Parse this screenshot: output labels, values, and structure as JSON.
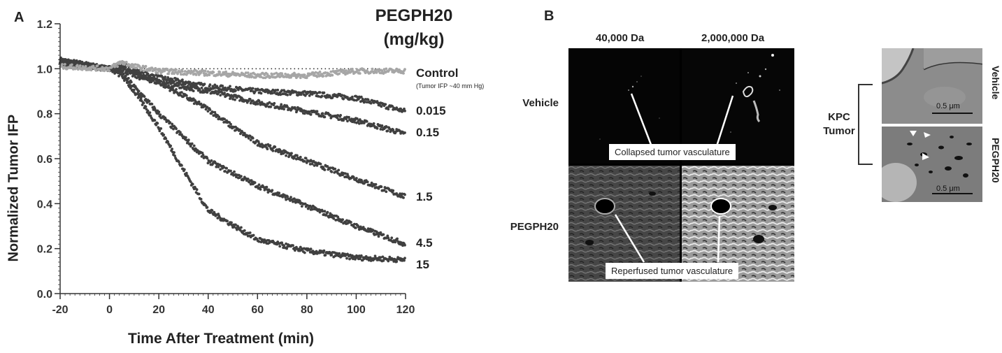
{
  "panels": {
    "a_letter": "A",
    "b_letter": "B"
  },
  "chart_data": {
    "type": "scatter",
    "title": "PEGPH20\n(mg/kg)",
    "title_line1": "PEGPH20",
    "title_line2": "(mg/kg)",
    "xlabel": "Time After Treatment (min)",
    "ylabel": "Normalized Tumor IFP",
    "xlim": [
      -20,
      120
    ],
    "ylim": [
      0.0,
      1.2
    ],
    "xticks": [
      -20,
      0,
      20,
      40,
      60,
      80,
      100,
      120
    ],
    "yticks": [
      0.0,
      0.2,
      0.4,
      0.6,
      0.8,
      1.0,
      1.2
    ],
    "xtick_labels": [
      "-20",
      "0",
      "20",
      "40",
      "60",
      "80",
      "100",
      "120"
    ],
    "ytick_labels": [
      "0.0",
      "0.2",
      "0.4",
      "0.6",
      "0.8",
      "1.0",
      "1.2"
    ],
    "reference_line": 1.0,
    "control_note": "(Tumor IFP ~40 mm Hg)",
    "colors": {
      "control": "#a6a6a6",
      "treated": "#404040"
    },
    "series": [
      {
        "name": "Control",
        "x": [
          -20,
          0,
          5,
          10,
          20,
          40,
          60,
          80,
          100,
          120
        ],
        "y": [
          1.01,
          1.0,
          1.03,
          1.01,
          0.99,
          0.98,
          0.97,
          0.97,
          0.99,
          0.99
        ]
      },
      {
        "name": "0.015",
        "x": [
          -20,
          0,
          5,
          10,
          20,
          40,
          60,
          80,
          100,
          120
        ],
        "y": [
          1.04,
          1.0,
          1.02,
          0.99,
          0.96,
          0.92,
          0.9,
          0.89,
          0.87,
          0.81
        ]
      },
      {
        "name": "0.15",
        "x": [
          -20,
          0,
          5,
          10,
          20,
          40,
          60,
          80,
          100,
          120
        ],
        "y": [
          1.03,
          1.0,
          1.01,
          0.98,
          0.94,
          0.9,
          0.85,
          0.81,
          0.77,
          0.71
        ]
      },
      {
        "name": "1.5",
        "x": [
          -20,
          0,
          5,
          10,
          20,
          40,
          50,
          60,
          80,
          100,
          120
        ],
        "y": [
          1.02,
          1.0,
          1.0,
          0.97,
          0.94,
          0.82,
          0.74,
          0.67,
          0.59,
          0.51,
          0.43
        ]
      },
      {
        "name": "4.5",
        "x": [
          -20,
          0,
          5,
          10,
          20,
          40,
          60,
          80,
          100,
          120
        ],
        "y": [
          1.03,
          1.0,
          0.98,
          0.92,
          0.8,
          0.59,
          0.48,
          0.39,
          0.3,
          0.22
        ]
      },
      {
        "name": "15",
        "x": [
          -20,
          0,
          5,
          10,
          20,
          30,
          40,
          60,
          80,
          100,
          120
        ],
        "y": [
          1.03,
          1.0,
          0.97,
          0.9,
          0.74,
          0.55,
          0.37,
          0.24,
          0.19,
          0.16,
          0.15
        ]
      }
    ]
  },
  "panel_b": {
    "col_labels": [
      "40,000 Da",
      "2,000,000 Da"
    ],
    "row_labels": [
      "Vehicle",
      "PEGPH20"
    ],
    "callout_top": "Collapsed tumor vasculature",
    "callout_bottom": "Reperfused tumor vasculature",
    "kpc_label_line1": "KPC",
    "kpc_label_line2": "Tumor",
    "em_labels": [
      "Vehicle",
      "PEGPH20"
    ],
    "scale_text": "0.5 μm"
  }
}
